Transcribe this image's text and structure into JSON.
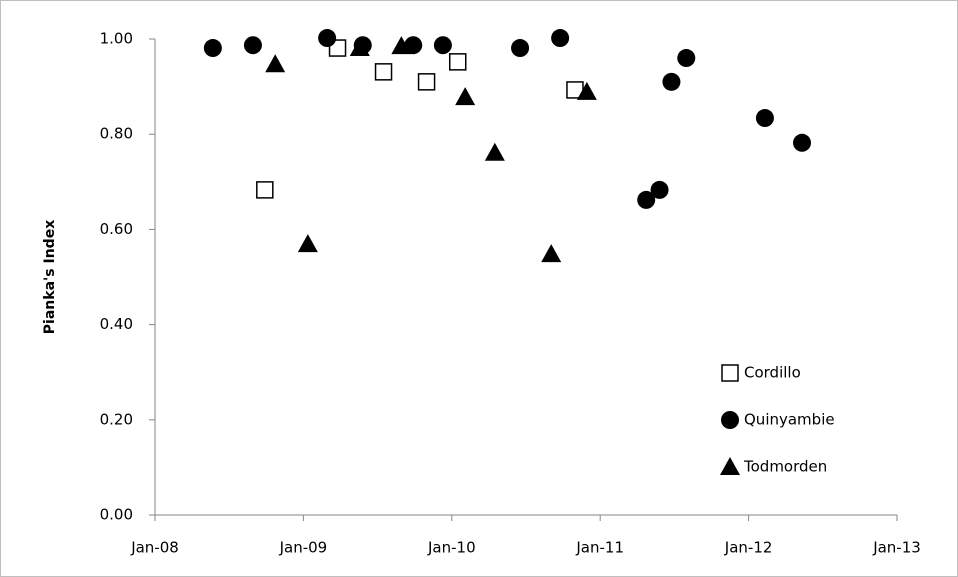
{
  "chart_data": {
    "type": "scatter",
    "y_label": "Pianka's Index",
    "xlim": [
      2008,
      2013
    ],
    "xticks": [
      {
        "value": 2008,
        "label": "Jan-08"
      },
      {
        "value": 2009,
        "label": "Jan-09"
      },
      {
        "value": 2010,
        "label": "Jan-10"
      },
      {
        "value": 2011,
        "label": "Jan-11"
      },
      {
        "value": 2012,
        "label": "Jan-12"
      },
      {
        "value": 2013,
        "label": "Jan-13"
      }
    ],
    "ylim": [
      0,
      1
    ],
    "yticks": [
      {
        "value": 0,
        "label": "0.00"
      },
      {
        "value": 0.2,
        "label": "0.20"
      },
      {
        "value": 0.4,
        "label": "0.40"
      },
      {
        "value": 0.6,
        "label": "0.60"
      },
      {
        "value": 0.8,
        "label": "0.80"
      },
      {
        "value": 1,
        "label": "1.00"
      }
    ],
    "grid": false,
    "legend": "bottom-right",
    "series": [
      {
        "name": "Cordillo",
        "color": "#000000",
        "marker": "square-open",
        "x": [
          2009.23,
          2008.74,
          2009.54,
          2009.83,
          2010.04,
          2010.83
        ],
        "values": [
          0.981,
          0.683,
          0.931,
          0.91,
          0.952,
          0.893
        ]
      },
      {
        "name": "Quinyambie",
        "color": "#000000",
        "marker": "circle",
        "x": [
          2008.39,
          2008.66,
          2009.16,
          2009.4,
          2009.74,
          2009.94,
          2010.46,
          2010.73,
          2011.31,
          2011.4,
          2011.48,
          2011.58,
          2012.11,
          2012.36
        ],
        "values": [
          0.981,
          0.987,
          1.002,
          0.987,
          0.987,
          0.987,
          0.981,
          1.002,
          0.662,
          0.683,
          0.91,
          0.96,
          0.834,
          0.782
        ]
      },
      {
        "name": "Todmorden",
        "color": "#000000",
        "marker": "triangle",
        "x": [
          2008.81,
          2009.03,
          2009.38,
          2009.66,
          2010.09,
          2010.29,
          2010.67,
          2010.91
        ],
        "values": [
          0.947,
          0.569,
          0.981,
          0.985,
          0.878,
          0.761,
          0.548,
          0.889
        ]
      }
    ]
  }
}
